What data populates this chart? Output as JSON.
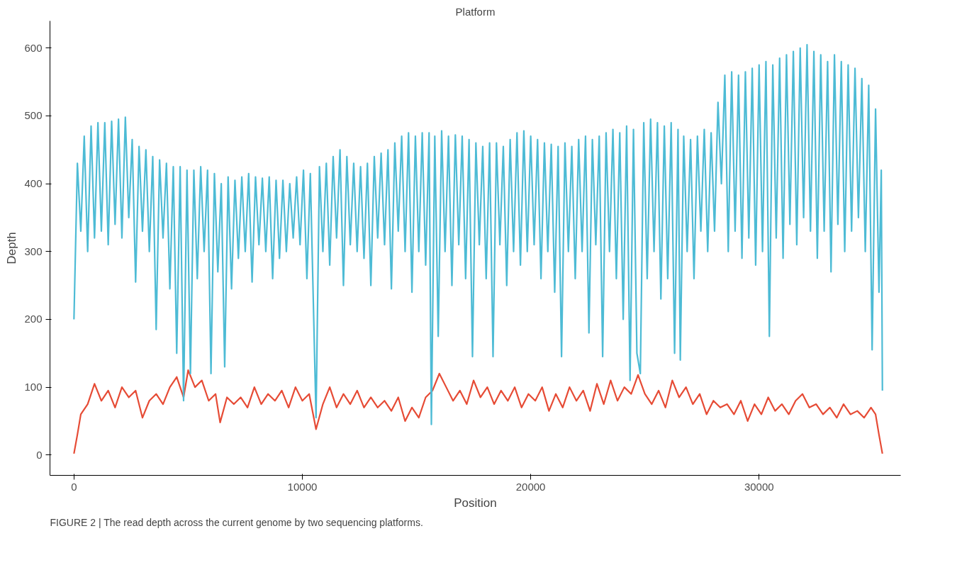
{
  "chart_data": {
    "type": "line",
    "xlabel": "Position",
    "ylabel": "Depth",
    "legend_title": "Platform",
    "grid": false,
    "annotations": [
      "FIGURE 2 | The read depth across the current genome by two sequencing platforms."
    ],
    "xlim": [
      -1050,
      36200
    ],
    "ylim": [
      -30,
      640
    ],
    "xticks": [
      0,
      10000,
      20000,
      30000
    ],
    "yticks": [
      0,
      100,
      200,
      300,
      400,
      500,
      600
    ],
    "series": [
      {
        "color": "#e64b35",
        "x": [
          0,
          150,
          300,
          600,
          900,
          1200,
          1500,
          1800,
          2100,
          2400,
          2700,
          3000,
          3300,
          3600,
          3900,
          4200,
          4500,
          4800,
          5000,
          5300,
          5600,
          5900,
          6200,
          6400,
          6700,
          7000,
          7300,
          7600,
          7900,
          8200,
          8500,
          8800,
          9100,
          9400,
          9700,
          10000,
          10300,
          10600,
          10900,
          11200,
          11500,
          11800,
          12100,
          12400,
          12700,
          13000,
          13300,
          13600,
          13900,
          14200,
          14500,
          14800,
          15100,
          15400,
          15700,
          16000,
          16300,
          16600,
          16900,
          17200,
          17500,
          17800,
          18100,
          18400,
          18700,
          19000,
          19300,
          19600,
          19900,
          20200,
          20500,
          20800,
          21100,
          21400,
          21700,
          22000,
          22300,
          22600,
          22900,
          23200,
          23500,
          23800,
          24100,
          24400,
          24700,
          25000,
          25300,
          25600,
          25900,
          26200,
          26500,
          26800,
          27100,
          27400,
          27700,
          28000,
          28300,
          28600,
          28900,
          29200,
          29500,
          29800,
          30100,
          30400,
          30700,
          31000,
          31300,
          31600,
          31900,
          32200,
          32500,
          32800,
          33100,
          33400,
          33700,
          34000,
          34300,
          34600,
          34900,
          35100,
          35250,
          35400
        ],
        "values": [
          2,
          30,
          60,
          75,
          105,
          80,
          95,
          70,
          100,
          85,
          95,
          55,
          80,
          90,
          75,
          100,
          115,
          85,
          125,
          100,
          110,
          80,
          90,
          48,
          85,
          75,
          85,
          70,
          100,
          75,
          90,
          80,
          95,
          70,
          100,
          80,
          90,
          38,
          75,
          100,
          70,
          90,
          75,
          95,
          70,
          85,
          70,
          80,
          65,
          85,
          50,
          70,
          55,
          85,
          95,
          120,
          100,
          80,
          95,
          75,
          110,
          85,
          100,
          75,
          95,
          80,
          100,
          70,
          90,
          80,
          100,
          65,
          90,
          70,
          100,
          80,
          95,
          65,
          105,
          75,
          110,
          80,
          100,
          90,
          118,
          90,
          75,
          95,
          70,
          110,
          85,
          100,
          75,
          90,
          60,
          80,
          70,
          75,
          60,
          80,
          50,
          75,
          60,
          85,
          65,
          75,
          60,
          80,
          90,
          70,
          75,
          60,
          70,
          55,
          75,
          60,
          65,
          55,
          70,
          60,
          30,
          2
        ]
      },
      {
        "color": "#4dbbd5",
        "x": [
          0,
          150,
          300,
          450,
          600,
          750,
          900,
          1050,
          1200,
          1350,
          1500,
          1650,
          1800,
          1950,
          2100,
          2250,
          2400,
          2550,
          2700,
          2850,
          3000,
          3150,
          3300,
          3450,
          3600,
          3750,
          3900,
          4050,
          4200,
          4350,
          4500,
          4650,
          4800,
          4950,
          5100,
          5250,
          5400,
          5550,
          5700,
          5850,
          6000,
          6150,
          6300,
          6450,
          6600,
          6750,
          6900,
          7050,
          7200,
          7350,
          7500,
          7650,
          7800,
          7950,
          8100,
          8250,
          8400,
          8550,
          8700,
          8850,
          9000,
          9150,
          9300,
          9450,
          9600,
          9750,
          9900,
          10050,
          10200,
          10350,
          10600,
          10750,
          10900,
          11050,
          11200,
          11350,
          11500,
          11650,
          11800,
          11950,
          12100,
          12250,
          12400,
          12550,
          12700,
          12850,
          13000,
          13150,
          13300,
          13450,
          13600,
          13750,
          13900,
          14050,
          14200,
          14350,
          14500,
          14650,
          14800,
          14950,
          15100,
          15250,
          15400,
          15550,
          15650,
          15800,
          15950,
          16100,
          16250,
          16400,
          16550,
          16700,
          16850,
          17000,
          17150,
          17300,
          17450,
          17600,
          17750,
          17900,
          18050,
          18200,
          18350,
          18500,
          18650,
          18800,
          18950,
          19100,
          19250,
          19400,
          19550,
          19700,
          19850,
          20000,
          20150,
          20300,
          20450,
          20600,
          20750,
          20900,
          21050,
          21200,
          21350,
          21500,
          21650,
          21800,
          21950,
          22100,
          22250,
          22400,
          22550,
          22700,
          22850,
          23000,
          23150,
          23300,
          23450,
          23600,
          23750,
          23900,
          24050,
          24200,
          24350,
          24500,
          24650,
          24800,
          24950,
          25100,
          25250,
          25400,
          25550,
          25700,
          25850,
          26000,
          26150,
          26300,
          26450,
          26550,
          26700,
          26850,
          27000,
          27150,
          27300,
          27450,
          27600,
          27750,
          27900,
          28050,
          28200,
          28350,
          28500,
          28650,
          28800,
          28950,
          29100,
          29250,
          29400,
          29550,
          29700,
          29850,
          30000,
          30150,
          30300,
          30450,
          30600,
          30750,
          30900,
          31050,
          31200,
          31350,
          31500,
          31650,
          31800,
          31950,
          32100,
          32250,
          32400,
          32550,
          32700,
          32850,
          33000,
          33150,
          33300,
          33450,
          33600,
          33750,
          33900,
          34050,
          34200,
          34350,
          34500,
          34650,
          34800,
          34950,
          35100,
          35250,
          35350,
          35400
        ],
        "values": [
          200,
          430,
          330,
          470,
          300,
          485,
          320,
          490,
          330,
          490,
          310,
          492,
          340,
          495,
          320,
          498,
          350,
          465,
          255,
          455,
          330,
          450,
          300,
          440,
          185,
          435,
          320,
          430,
          245,
          425,
          150,
          425,
          80,
          420,
          120,
          420,
          260,
          425,
          300,
          420,
          120,
          415,
          270,
          400,
          130,
          410,
          245,
          405,
          290,
          410,
          300,
          415,
          255,
          410,
          310,
          408,
          300,
          410,
          260,
          405,
          290,
          405,
          300,
          400,
          320,
          410,
          310,
          420,
          260,
          415,
          55,
          425,
          300,
          430,
          280,
          440,
          320,
          450,
          250,
          440,
          310,
          430,
          300,
          425,
          290,
          430,
          250,
          440,
          320,
          445,
          310,
          450,
          245,
          460,
          330,
          470,
          300,
          475,
          240,
          470,
          300,
          475,
          280,
          475,
          45,
          470,
          175,
          478,
          300,
          470,
          250,
          472,
          310,
          470,
          260,
          465,
          145,
          460,
          310,
          455,
          260,
          460,
          145,
          460,
          310,
          455,
          250,
          465,
          300,
          475,
          280,
          478,
          300,
          470,
          310,
          465,
          260,
          460,
          300,
          458,
          240,
          455,
          145,
          460,
          300,
          455,
          260,
          465,
          300,
          470,
          180,
          465,
          310,
          470,
          145,
          475,
          300,
          480,
          260,
          475,
          200,
          485,
          110,
          480,
          150,
          120,
          490,
          260,
          495,
          300,
          490,
          230,
          485,
          260,
          490,
          150,
          480,
          140,
          470,
          300,
          465,
          260,
          470,
          330,
          480,
          300,
          475,
          330,
          520,
          400,
          560,
          300,
          565,
          330,
          560,
          290,
          565,
          320,
          570,
          280,
          575,
          300,
          580,
          175,
          575,
          320,
          585,
          290,
          590,
          340,
          595,
          310,
          600,
          350,
          605,
          330,
          595,
          290,
          590,
          330,
          580,
          270,
          590,
          340,
          580,
          300,
          575,
          330,
          570,
          350,
          555,
          300,
          545,
          155,
          510,
          240,
          420,
          95
        ]
      }
    ]
  }
}
